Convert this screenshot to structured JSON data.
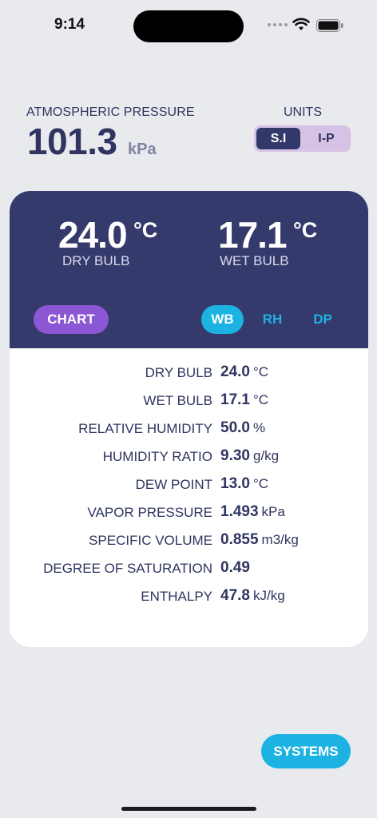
{
  "status_bar": {
    "time": "9:14"
  },
  "pressure": {
    "label": "ATMOSPHERIC PRESSURE",
    "value": "101.3",
    "unit": "kPa"
  },
  "units": {
    "label": "UNITS",
    "options": [
      "S.I",
      "I-P"
    ],
    "selected": "S.I"
  },
  "summary": {
    "dry_bulb": {
      "value": "24.0",
      "unit": "°C",
      "label": "DRY BULB"
    },
    "wet_bulb": {
      "value": "17.1",
      "unit": "°C",
      "label": "WET BULB"
    }
  },
  "buttons": {
    "chart": "CHART",
    "modes": [
      "WB",
      "RH",
      "DP"
    ],
    "selected_mode": "WB",
    "systems": "SYSTEMS"
  },
  "properties": [
    {
      "label": "DRY BULB",
      "value": "24.0",
      "unit": "°C"
    },
    {
      "label": "WET BULB",
      "value": "17.1",
      "unit": "°C"
    },
    {
      "label": "RELATIVE HUMIDITY",
      "value": "50.0",
      "unit": "%"
    },
    {
      "label": "HUMIDITY RATIO",
      "value": "9.30",
      "unit": "g/kg"
    },
    {
      "label": "DEW POINT",
      "value": "13.0",
      "unit": "°C"
    },
    {
      "label": "VAPOR PRESSURE",
      "value": "1.493",
      "unit": "kPa"
    },
    {
      "label": "SPECIFIC VOLUME",
      "value": "0.855",
      "unit": "m3/kg"
    },
    {
      "label": "DEGREE OF SATURATION",
      "value": "0.49",
      "unit": ""
    },
    {
      "label": "ENTHALPY",
      "value": "47.8",
      "unit": "kJ/kg"
    }
  ],
  "icons": {
    "signal": "cellular-signal-icon",
    "wifi": "wifi-icon",
    "battery": "battery-icon"
  },
  "colors": {
    "primary": "#353a6c",
    "accent_blue": "#1cb3e3",
    "accent_purple": "#8b57d4",
    "background": "#e9eaee"
  }
}
